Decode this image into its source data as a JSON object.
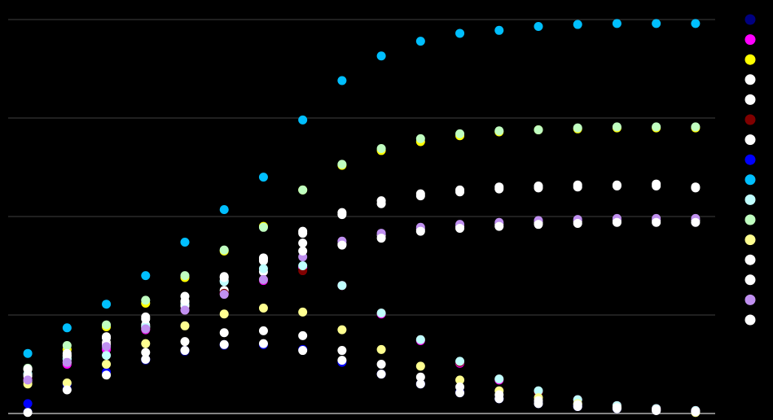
{
  "chart_data": {
    "type": "scatter",
    "categories": [
      null,
      null,
      null,
      null,
      null,
      null,
      null,
      null,
      null,
      null,
      null,
      null,
      null,
      null,
      null,
      null,
      null,
      null
    ],
    "ylim": [
      0,
      4
    ],
    "yticks": [
      0,
      1,
      2,
      3,
      4
    ],
    "grid": true,
    "legend": "right",
    "series": [
      {
        "color": "#000080",
        "values": [
          0.02,
          0.25,
          0.4,
          0.54,
          0.63,
          0.69,
          0.7,
          0.65,
          0.53,
          0.4,
          0.3,
          0.22,
          0.15,
          0.11,
          0.08,
          0.05,
          0.03,
          0.02
        ]
      },
      {
        "color": "#ff00ff",
        "values": [
          0.35,
          0.5,
          0.65,
          0.85,
          1.05,
          1.22,
          1.35,
          1.48,
          1.3,
          1.01,
          0.74,
          0.51,
          0.34,
          0.22,
          0.14,
          0.08,
          0.05,
          0.03
        ]
      },
      {
        "color": "#ffff00",
        "values": [
          0.45,
          0.65,
          0.88,
          1.12,
          1.38,
          1.65,
          1.9,
          2.27,
          2.52,
          2.67,
          2.76,
          2.82,
          2.86,
          2.88,
          2.89,
          2.9,
          2.9,
          2.9
        ]
      },
      {
        "color": "#ffffff",
        "values": [
          0.45,
          0.58,
          0.77,
          0.98,
          1.19,
          1.39,
          1.57,
          1.85,
          2.04,
          2.16,
          2.23,
          2.27,
          2.3,
          2.31,
          2.32,
          2.32,
          2.33,
          2.3
        ]
      },
      {
        "color": "#ffffff",
        "values": [
          0.4,
          0.55,
          0.72,
          0.9,
          1.09,
          1.25,
          1.44,
          1.83,
          2.02,
          2.13,
          2.21,
          2.25,
          2.28,
          2.29,
          2.3,
          2.31,
          2.31,
          2.29
        ]
      },
      {
        "color": "#800000",
        "values": [
          0.35,
          0.52,
          0.7,
          0.86,
          1.05,
          1.22,
          1.36,
          1.45,
          1.3,
          1.02,
          0.75,
          0.52,
          0.35,
          0.22,
          0.14,
          0.08,
          0.05,
          0.03
        ]
      },
      {
        "color": "#ffffff",
        "values": [
          0.33,
          0.52,
          0.7,
          0.88,
          1.1,
          1.35,
          1.55,
          1.73,
          1.72,
          1.81,
          1.87,
          1.9,
          1.92,
          1.94,
          1.95,
          1.96,
          1.96,
          1.96
        ]
      },
      {
        "color": "#0000ff",
        "values": [
          0.1,
          0.3,
          0.42,
          0.55,
          0.64,
          0.7,
          0.7,
          0.65,
          0.52,
          0.4,
          0.3,
          0.21,
          0.15,
          0.1,
          0.07,
          0.05,
          0.03,
          0.02
        ]
      },
      {
        "color": "#00bfff",
        "values": [
          0.61,
          0.87,
          1.11,
          1.4,
          1.74,
          2.07,
          2.4,
          2.98,
          3.38,
          3.63,
          3.78,
          3.86,
          3.89,
          3.93,
          3.95,
          3.96,
          3.96,
          3.96
        ]
      },
      {
        "color": "#c0ffff",
        "values": [
          0.4,
          0.56,
          0.59,
          0.88,
          1.13,
          1.34,
          1.47,
          1.5,
          1.3,
          1.02,
          0.75,
          0.53,
          0.35,
          0.23,
          0.14,
          0.08,
          0.05,
          0.03
        ]
      },
      {
        "color": "#c0ffc0",
        "values": [
          0.46,
          0.69,
          0.9,
          1.15,
          1.4,
          1.66,
          1.89,
          2.27,
          2.53,
          2.69,
          2.79,
          2.84,
          2.87,
          2.88,
          2.9,
          2.91,
          2.91,
          2.91
        ]
      },
      {
        "color": "#ffff90",
        "values": [
          0.3,
          0.31,
          0.5,
          0.71,
          0.89,
          1.01,
          1.07,
          1.03,
          0.85,
          0.65,
          0.48,
          0.34,
          0.23,
          0.16,
          0.1,
          0.06,
          0.03,
          0.01
        ]
      },
      {
        "color": "#ffffff",
        "values": [
          0.38,
          0.59,
          0.77,
          0.55,
          0.73,
          0.82,
          0.84,
          0.79,
          0.64,
          0.5,
          0.37,
          0.27,
          0.19,
          0.13,
          0.09,
          0.06,
          0.04,
          0.02
        ]
      },
      {
        "color": "#ffffff",
        "values": [
          0.01,
          0.24,
          0.39,
          0.62,
          0.64,
          0.7,
          0.71,
          0.64,
          0.54,
          0.4,
          0.3,
          0.21,
          0.15,
          0.1,
          0.07,
          0.05,
          0.03,
          0.02
        ]
      },
      {
        "color": "#c090f0",
        "values": [
          0.34,
          0.52,
          0.68,
          0.86,
          1.05,
          1.21,
          1.36,
          1.59,
          1.75,
          1.83,
          1.89,
          1.92,
          1.94,
          1.96,
          1.97,
          1.98,
          1.98,
          1.98
        ]
      },
      {
        "color": "#ffffff",
        "values": [
          0.45,
          0.61,
          0.78,
          0.96,
          1.14,
          1.38,
          1.58,
          1.65,
          1.71,
          1.78,
          1.85,
          1.88,
          1.9,
          1.92,
          1.93,
          1.94,
          1.94,
          1.94
        ]
      }
    ]
  }
}
